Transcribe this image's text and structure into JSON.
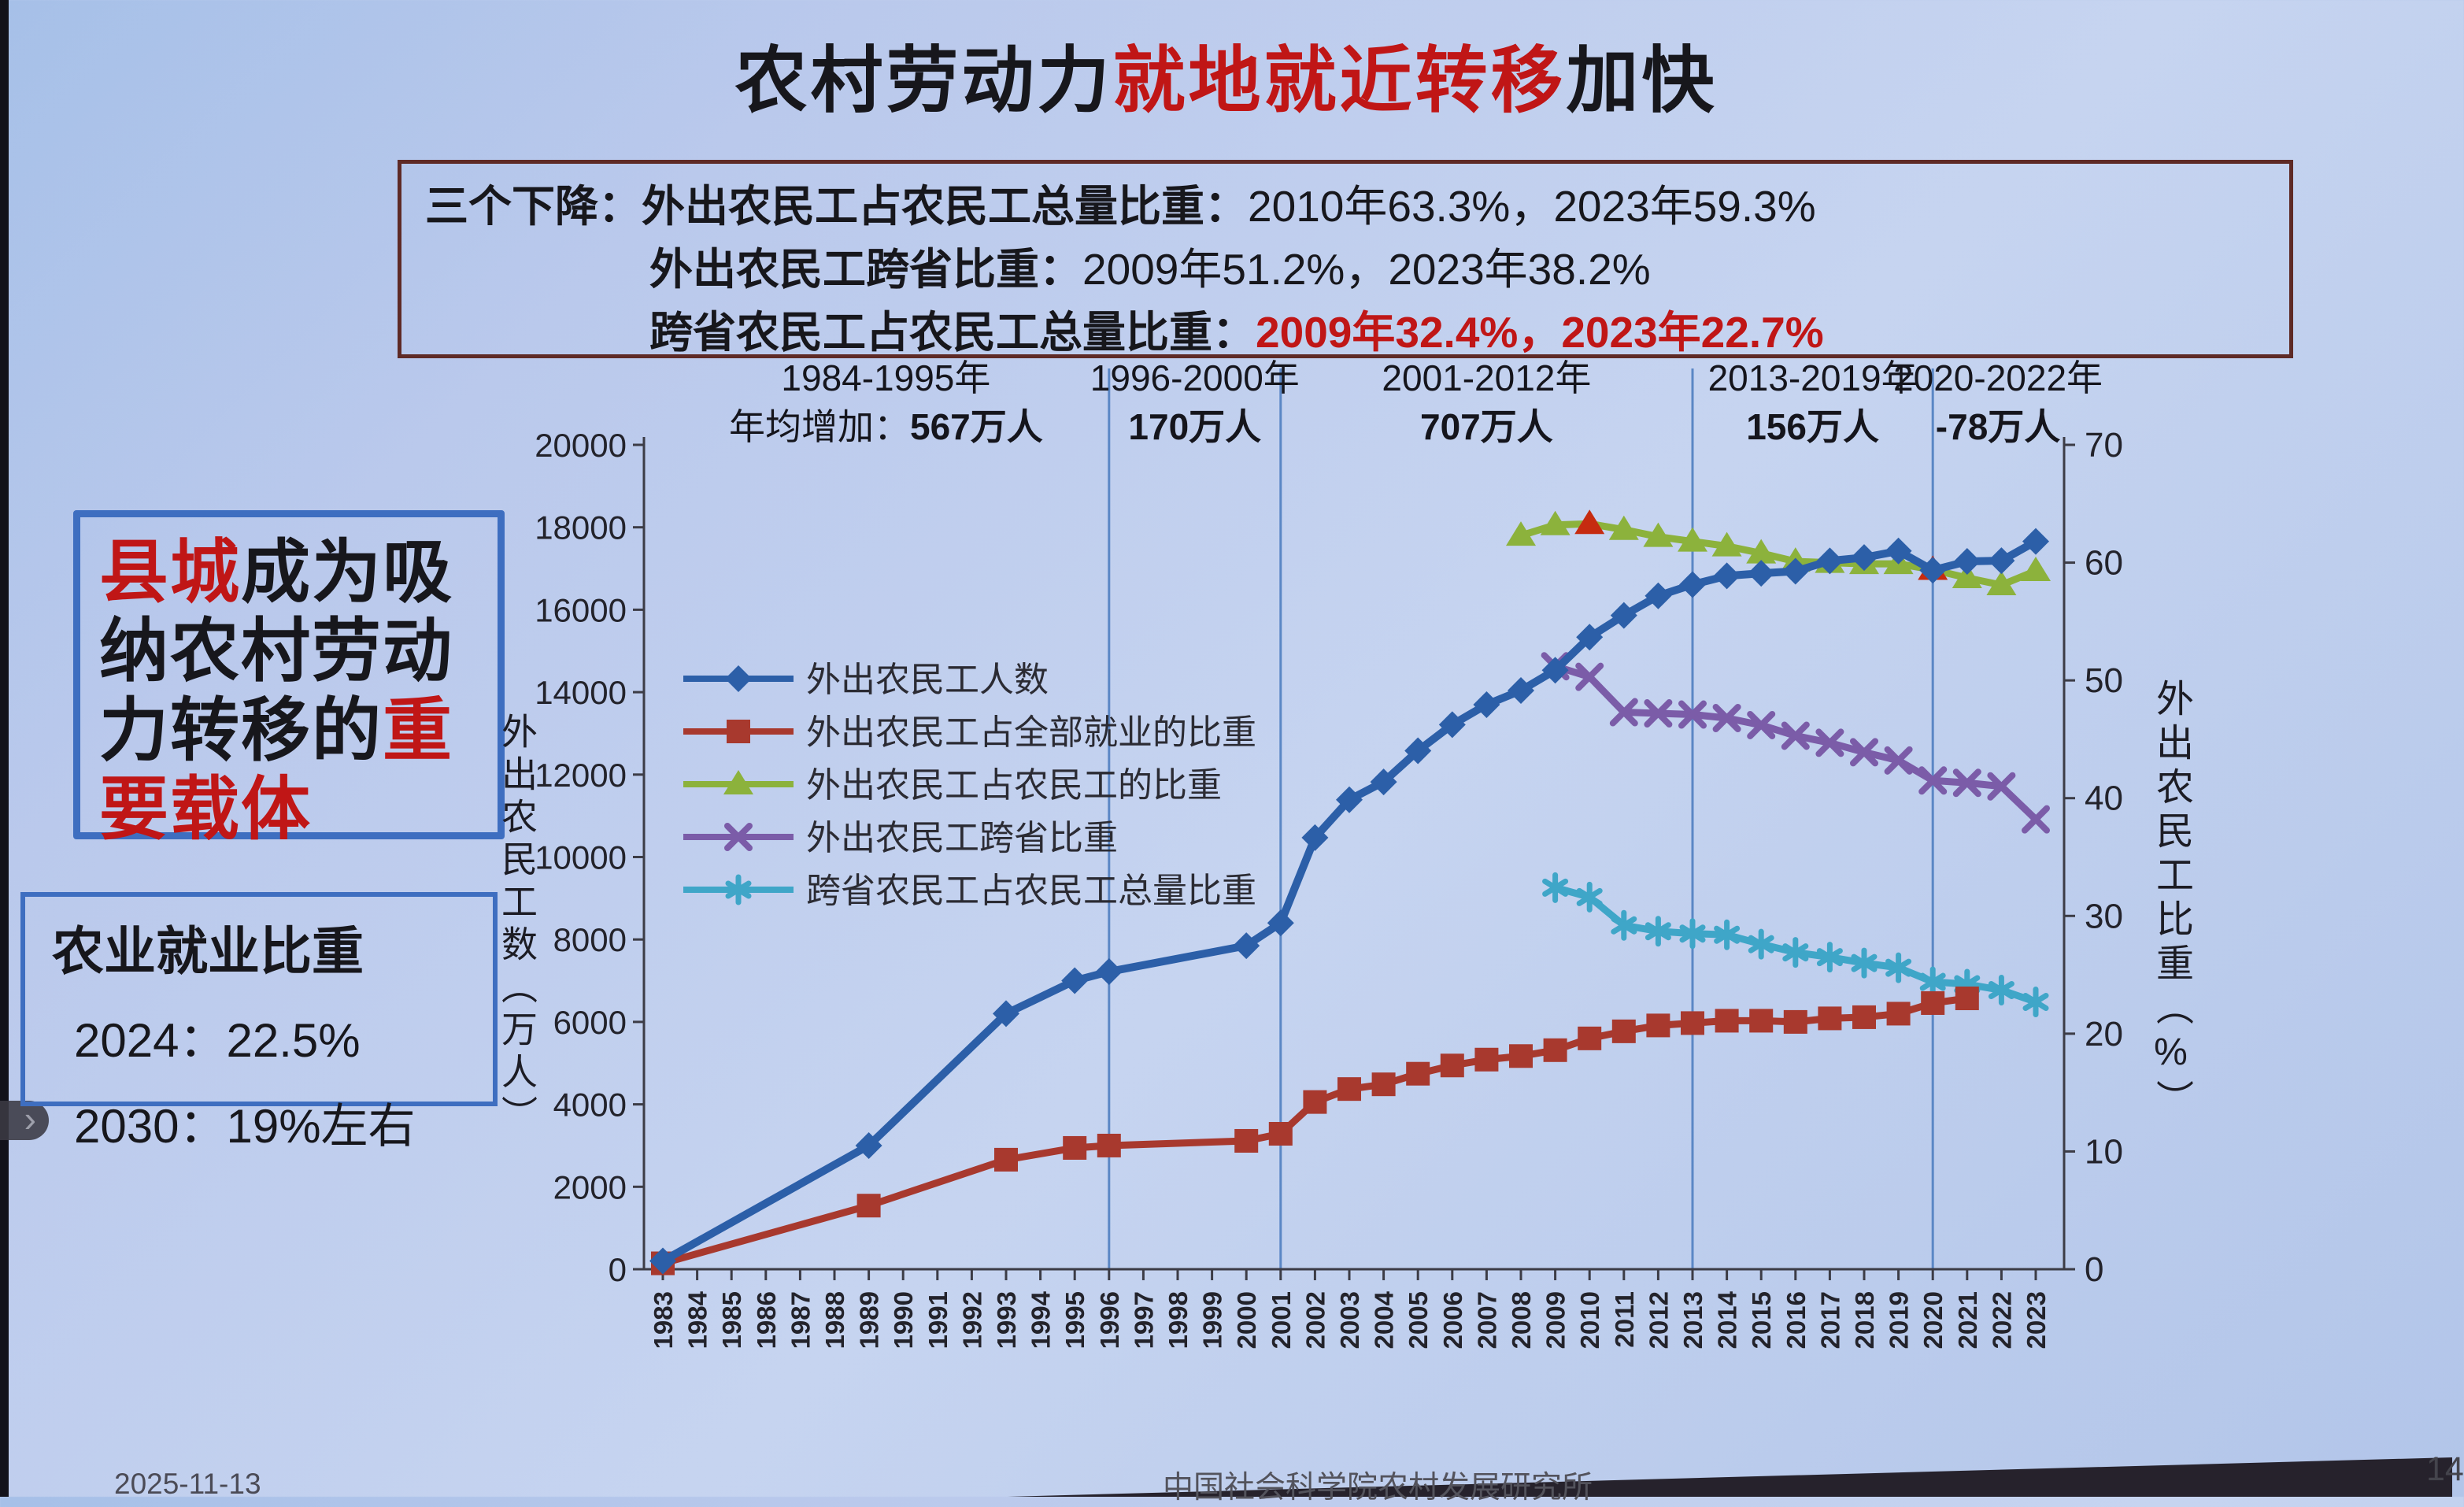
{
  "title": {
    "prefix": "农村劳动力",
    "highlight": "就地就近转移",
    "suffix": "加快"
  },
  "summary": {
    "heading": "三个下降：",
    "lines": [
      {
        "label": "外出农民工占农民工总量比重：",
        "value": "2010年63.3%，2023年59.3%",
        "highlight": false
      },
      {
        "label": "外出农民工跨省比重：",
        "value": "2009年51.2%，2023年38.2%",
        "highlight": false
      },
      {
        "label": "跨省农民工占农民工总量比重：",
        "value": "2009年32.4%，2023年22.7%",
        "highlight": true
      }
    ]
  },
  "callout": {
    "segments": [
      {
        "text": "县城",
        "color": "red"
      },
      {
        "text": "成为吸纳农村劳动力转移的",
        "color": "black"
      },
      {
        "text": "重要载体",
        "color": "red"
      }
    ]
  },
  "agri": {
    "title": "农业就业比重",
    "rows": [
      "2024：22.5%",
      "2030：19%左右"
    ]
  },
  "footer": {
    "date": "2025-11-13",
    "org": "中国社会科学院农村发展研究所",
    "page": "14"
  },
  "nav": {
    "next_glyph": "›"
  },
  "chart_data": {
    "type": "line",
    "x_years": [
      1983,
      1984,
      1985,
      1986,
      1987,
      1988,
      1989,
      1990,
      1991,
      1992,
      1993,
      1994,
      1995,
      1996,
      1997,
      1998,
      1999,
      2000,
      2001,
      2002,
      2003,
      2004,
      2005,
      2006,
      2007,
      2008,
      2009,
      2010,
      2011,
      2012,
      2013,
      2014,
      2015,
      2016,
      2017,
      2018,
      2019,
      2020,
      2021,
      2022,
      2023
    ],
    "left_axis": {
      "label": "外出农民工数（万人）",
      "min": 0,
      "max": 20000,
      "step": 2000
    },
    "right_axis": {
      "label": "外出农民工比重（%）",
      "min": 0,
      "max": 70,
      "step": 10
    },
    "divider_years": [
      1996,
      2001,
      2013,
      2020
    ],
    "period_annotations": [
      {
        "range": "1984-1995年",
        "prefix": "年均增加：",
        "value": "567万人",
        "from": 1983,
        "to": 1996
      },
      {
        "range": "1996-2000年",
        "prefix": "",
        "value": "170万人",
        "from": 1996,
        "to": 2001
      },
      {
        "range": "2001-2012年",
        "prefix": "",
        "value": "707万人",
        "from": 2001,
        "to": 2013
      },
      {
        "range": "2013-2019年",
        "prefix": "",
        "value": "156万人",
        "from": 2013,
        "to": 2020
      },
      {
        "range": "2020-2022年",
        "prefix": "",
        "value": "-78万人",
        "from": 2020,
        "to": 2023.8
      }
    ],
    "series": [
      {
        "name": "外出农民工人数",
        "axis": "left",
        "color": "#2c5fa8",
        "marker": "diamond",
        "points": [
          [
            1983,
            200
          ],
          [
            1989,
            3000
          ],
          [
            1993,
            6200
          ],
          [
            1995,
            7000
          ],
          [
            1996,
            7220
          ],
          [
            2000,
            7849
          ],
          [
            2001,
            8399
          ],
          [
            2002,
            10470
          ],
          [
            2003,
            11390
          ],
          [
            2004,
            11823
          ],
          [
            2005,
            12578
          ],
          [
            2006,
            13212
          ],
          [
            2007,
            13697
          ],
          [
            2008,
            14041
          ],
          [
            2009,
            14533
          ],
          [
            2010,
            15335
          ],
          [
            2011,
            15863
          ],
          [
            2012,
            16336
          ],
          [
            2013,
            16610
          ],
          [
            2014,
            16821
          ],
          [
            2015,
            16884
          ],
          [
            2016,
            16934
          ],
          [
            2017,
            17185
          ],
          [
            2018,
            17266
          ],
          [
            2019,
            17425
          ],
          [
            2020,
            16959
          ],
          [
            2021,
            17172
          ],
          [
            2022,
            17190
          ],
          [
            2023,
            17658
          ]
        ]
      },
      {
        "name": "外出农民工占全部就业的比重",
        "axis": "right",
        "color": "#a8392e",
        "marker": "square",
        "points": [
          [
            1983,
            0.5
          ],
          [
            1989,
            5.4
          ],
          [
            1993,
            9.3
          ],
          [
            1995,
            10.3
          ],
          [
            1996,
            10.5
          ],
          [
            2000,
            10.9
          ],
          [
            2001,
            11.5
          ],
          [
            2002,
            14.2
          ],
          [
            2003,
            15.3
          ],
          [
            2004,
            15.7
          ],
          [
            2005,
            16.6
          ],
          [
            2006,
            17.3
          ],
          [
            2007,
            17.8
          ],
          [
            2008,
            18.1
          ],
          [
            2009,
            18.6
          ],
          [
            2010,
            19.6
          ],
          [
            2011,
            20.2
          ],
          [
            2012,
            20.7
          ],
          [
            2013,
            20.9
          ],
          [
            2014,
            21.1
          ],
          [
            2015,
            21.1
          ],
          [
            2016,
            21.0
          ],
          [
            2017,
            21.3
          ],
          [
            2018,
            21.4
          ],
          [
            2019,
            21.7
          ],
          [
            2020,
            22.6
          ],
          [
            2021,
            23.0
          ]
        ]
      },
      {
        "name": "外出农民工占农民工的比重",
        "axis": "right",
        "color": "#8cb23c",
        "marker": "triangle",
        "highlight_years": [
          2010,
          2020
        ],
        "highlight_color": "#c62b10",
        "points": [
          [
            2008,
            62.3
          ],
          [
            2009,
            63.2
          ],
          [
            2010,
            63.3
          ],
          [
            2011,
            62.8
          ],
          [
            2012,
            62.2
          ],
          [
            2013,
            61.8
          ],
          [
            2014,
            61.4
          ],
          [
            2015,
            60.8
          ],
          [
            2016,
            60.1
          ],
          [
            2017,
            60.0
          ],
          [
            2018,
            59.9
          ],
          [
            2019,
            59.9
          ],
          [
            2020,
            59.4
          ],
          [
            2021,
            58.7
          ],
          [
            2022,
            58.1
          ],
          [
            2023,
            59.3
          ]
        ]
      },
      {
        "name": "外出农民工跨省比重",
        "axis": "right",
        "color": "#7b5ca8",
        "marker": "x",
        "points": [
          [
            2009,
            51.2
          ],
          [
            2010,
            50.3
          ],
          [
            2011,
            47.3
          ],
          [
            2012,
            47.2
          ],
          [
            2013,
            47.1
          ],
          [
            2014,
            46.8
          ],
          [
            2015,
            46.2
          ],
          [
            2016,
            45.3
          ],
          [
            2017,
            44.7
          ],
          [
            2018,
            43.9
          ],
          [
            2019,
            43.2
          ],
          [
            2020,
            41.5
          ],
          [
            2021,
            41.3
          ],
          [
            2022,
            41.0
          ],
          [
            2023,
            38.2
          ]
        ]
      },
      {
        "name": "跨省农民工占农民工总量比重",
        "axis": "right",
        "color": "#3fa6c8",
        "marker": "star",
        "points": [
          [
            2009,
            32.4
          ],
          [
            2010,
            31.6
          ],
          [
            2011,
            29.2
          ],
          [
            2012,
            28.7
          ],
          [
            2013,
            28.5
          ],
          [
            2014,
            28.4
          ],
          [
            2015,
            27.6
          ],
          [
            2016,
            26.9
          ],
          [
            2017,
            26.5
          ],
          [
            2018,
            26.0
          ],
          [
            2019,
            25.6
          ],
          [
            2020,
            24.4
          ],
          [
            2021,
            24.2
          ],
          [
            2022,
            23.7
          ],
          [
            2023,
            22.7
          ]
        ]
      }
    ],
    "legend_position": "inside-left",
    "grid": false
  }
}
